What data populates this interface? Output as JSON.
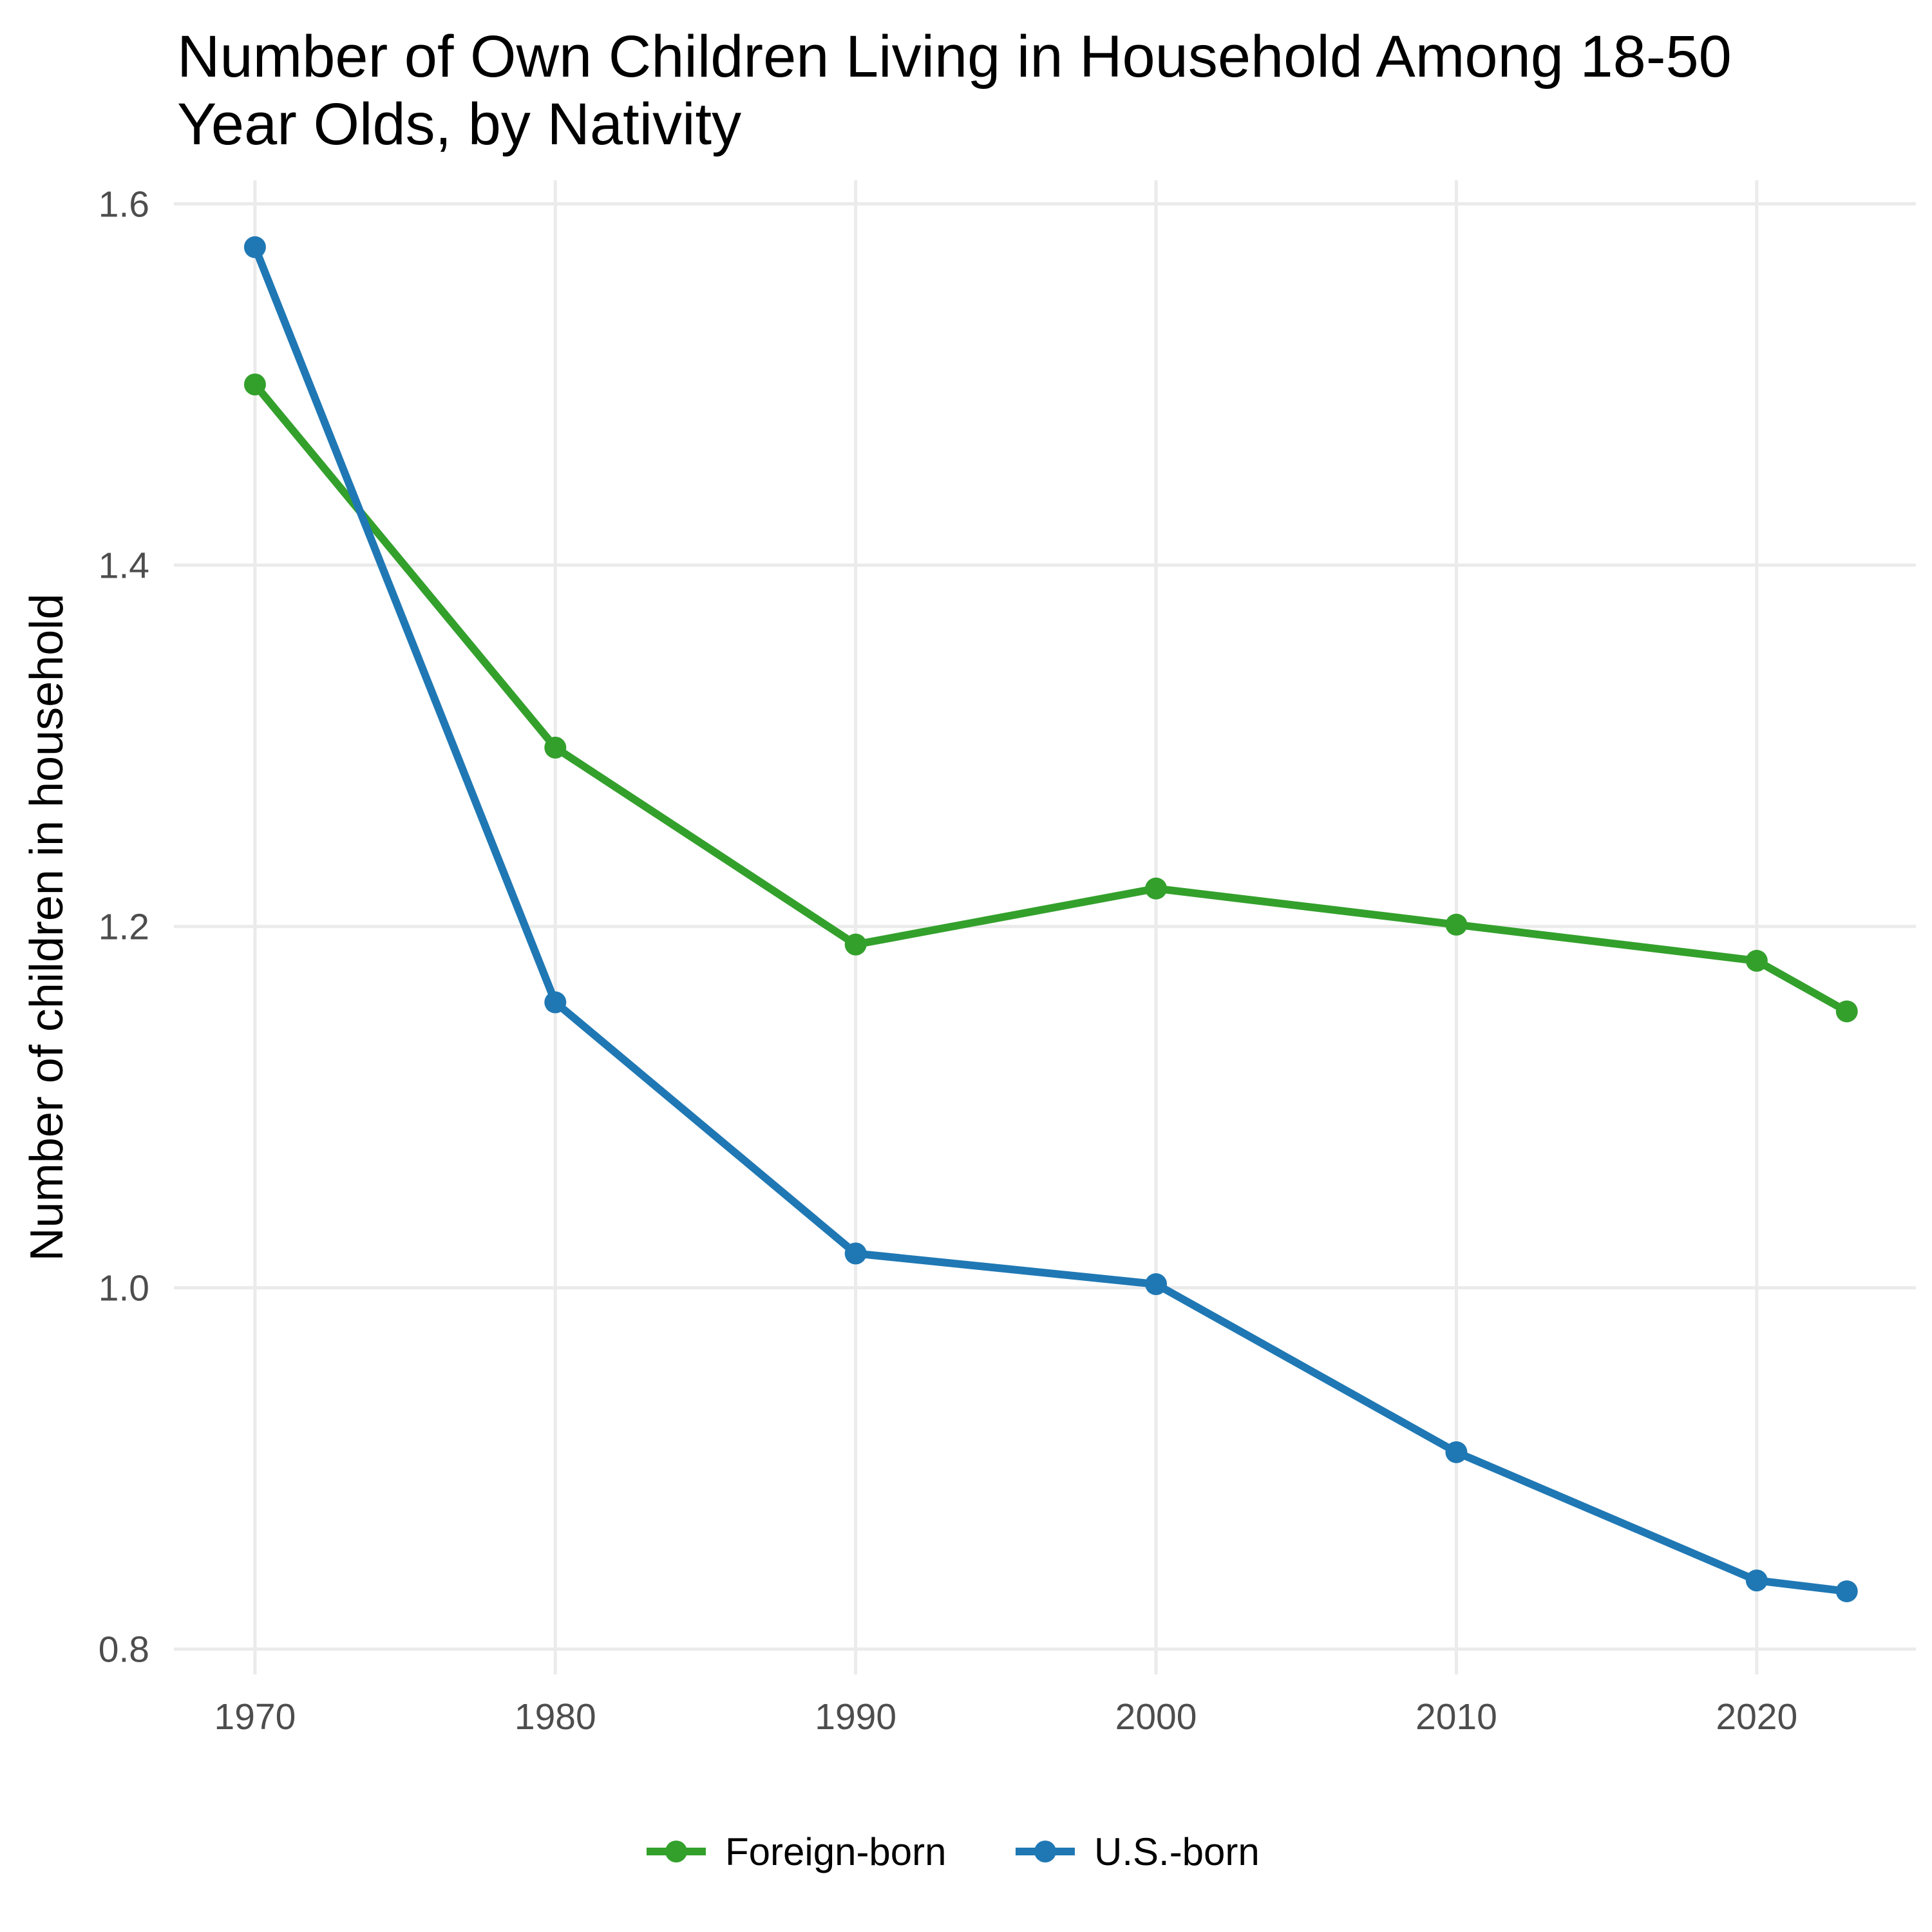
{
  "chart_data": {
    "type": "line",
    "title_lines": [
      "Number of Own Children Living in Household Among 18-50",
      "Year Olds, by Nativity"
    ],
    "xlabel": "",
    "ylabel": "Number of children in household",
    "xlim": [
      1967.3,
      2025.3
    ],
    "ylim": [
      0.786,
      1.613
    ],
    "x_ticks": [
      1970,
      1980,
      1990,
      2000,
      2010,
      2020
    ],
    "y_ticks": [
      0.8,
      1.0,
      1.2,
      1.4,
      1.6
    ],
    "y_tick_labels": [
      "0.8",
      "1.0",
      "1.2",
      "1.4",
      "1.6"
    ],
    "grid": true,
    "legend_position": "bottom",
    "x": [
      1970,
      1980,
      1990,
      2000,
      2010,
      2020,
      2023
    ],
    "series": [
      {
        "name": "Foreign-born",
        "color": "#33a02c",
        "values": [
          1.5,
          1.299,
          1.19,
          1.221,
          1.201,
          1.181,
          1.153
        ]
      },
      {
        "name": "U.S.-born",
        "color": "#1f78b4",
        "values": [
          1.576,
          1.158,
          1.019,
          1.002,
          0.909,
          0.838,
          0.832
        ]
      }
    ]
  }
}
